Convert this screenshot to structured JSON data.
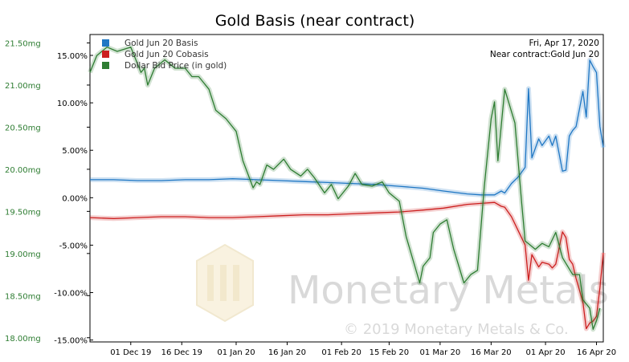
{
  "chart_data": {
    "type": "line",
    "title": "Gold Basis (near contract)",
    "legend": {
      "placement": "top-left",
      "entries": [
        {
          "name": "Gold Jun 20 Basis",
          "color": "#1f77c4"
        },
        {
          "name": "Gold Jun 20 Cobasis",
          "color": "#cc1f1f"
        },
        {
          "name": "Dollar Bid Price (in gold)",
          "color": "#2e7d32"
        }
      ]
    },
    "info": {
      "date": "Fri, Apr 17, 2020",
      "contract": "Near contract:Gold Jun 20"
    },
    "watermark": {
      "brand": "Monetary Metals",
      "copyright": "© 2019 Monetary Metals & Co."
    },
    "x_axis": {
      "start": "2019-11-19",
      "end": "2020-04-18",
      "ticks": [
        {
          "date": "2019-12-01",
          "label": "01 Dec 19"
        },
        {
          "date": "2019-12-16",
          "label": "16 Dec 19"
        },
        {
          "date": "2020-01-01",
          "label": "01 Jan 20"
        },
        {
          "date": "2020-01-16",
          "label": "16 Jan 20"
        },
        {
          "date": "2020-02-01",
          "label": "01 Feb 20"
        },
        {
          "date": "2020-02-15",
          "label": "15 Feb 20"
        },
        {
          "date": "2020-03-01",
          "label": "01 Mar 20"
        },
        {
          "date": "2020-03-16",
          "label": "16 Mar 20"
        },
        {
          "date": "2020-04-01",
          "label": "01 Apr 20"
        },
        {
          "date": "2020-04-16",
          "label": "16 Apr 20"
        }
      ]
    },
    "y_left": {
      "unit": "mg",
      "range": [
        17.95,
        21.6
      ],
      "ticks": [
        {
          "value": 18.0,
          "label": "18.00mg"
        },
        {
          "value": 18.5,
          "label": "18.50mg"
        },
        {
          "value": 19.0,
          "label": "19.00mg"
        },
        {
          "value": 19.5,
          "label": "19.50mg"
        },
        {
          "value": 20.0,
          "label": "20.00mg"
        },
        {
          "value": 20.5,
          "label": "20.50mg"
        },
        {
          "value": 21.0,
          "label": "21.00mg"
        },
        {
          "value": 21.5,
          "label": "21.50mg"
        }
      ]
    },
    "y_right": {
      "unit": "%",
      "range": [
        -15.2,
        17.2
      ],
      "ticks": [
        {
          "value": 15,
          "label": "15.00%"
        },
        {
          "value": 10,
          "label": "10.00%"
        },
        {
          "value": 5,
          "label": "5.00%"
        },
        {
          "value": 0,
          "label": "0.00%"
        },
        {
          "value": -5,
          "label": "-5.00%"
        },
        {
          "value": -10,
          "label": "-10.00%"
        },
        {
          "value": -15,
          "label": "-15.00%"
        }
      ]
    },
    "grid": false,
    "series": [
      {
        "name": "Gold Jun 20 Basis",
        "axis": "right",
        "color": "#1f77c4",
        "points": [
          [
            "2019-11-19",
            1.9
          ],
          [
            "2019-11-26",
            1.9
          ],
          [
            "2019-12-03",
            1.8
          ],
          [
            "2019-12-10",
            1.8
          ],
          [
            "2019-12-17",
            1.9
          ],
          [
            "2019-12-24",
            1.9
          ],
          [
            "2019-12-31",
            2.0
          ],
          [
            "2020-01-07",
            1.9
          ],
          [
            "2020-01-14",
            1.8
          ],
          [
            "2020-01-21",
            1.7
          ],
          [
            "2020-01-28",
            1.6
          ],
          [
            "2020-02-04",
            1.5
          ],
          [
            "2020-02-11",
            1.4
          ],
          [
            "2020-02-18",
            1.2
          ],
          [
            "2020-02-25",
            1.0
          ],
          [
            "2020-03-02",
            0.7
          ],
          [
            "2020-03-09",
            0.4
          ],
          [
            "2020-03-13",
            0.3
          ],
          [
            "2020-03-17",
            0.3
          ],
          [
            "2020-03-19",
            0.7
          ],
          [
            "2020-03-20",
            0.5
          ],
          [
            "2020-03-22",
            1.5
          ],
          [
            "2020-03-24",
            2.2
          ],
          [
            "2020-03-26",
            3.2
          ],
          [
            "2020-03-27",
            11.5
          ],
          [
            "2020-03-28",
            4.2
          ],
          [
            "2020-03-30",
            6.2
          ],
          [
            "2020-03-31",
            5.5
          ],
          [
            "2020-04-02",
            6.5
          ],
          [
            "2020-04-03",
            5.5
          ],
          [
            "2020-04-04",
            6.5
          ],
          [
            "2020-04-06",
            2.8
          ],
          [
            "2020-04-07",
            2.9
          ],
          [
            "2020-04-08",
            6.5
          ],
          [
            "2020-04-09",
            7.1
          ],
          [
            "2020-04-10",
            7.5
          ],
          [
            "2020-04-12",
            11.2
          ],
          [
            "2020-04-13",
            8.5
          ],
          [
            "2020-04-14",
            14.5
          ],
          [
            "2020-04-15",
            13.8
          ],
          [
            "2020-04-16",
            13.2
          ],
          [
            "2020-04-17",
            7.5
          ],
          [
            "2020-04-18",
            5.3
          ]
        ]
      },
      {
        "name": "Gold Jun 20 Cobasis",
        "axis": "right",
        "color": "#cc1f1f",
        "points": [
          [
            "2019-11-19",
            -2.1
          ],
          [
            "2019-11-26",
            -2.2
          ],
          [
            "2019-12-03",
            -2.1
          ],
          [
            "2019-12-10",
            -2.0
          ],
          [
            "2019-12-17",
            -2.0
          ],
          [
            "2019-12-24",
            -2.1
          ],
          [
            "2019-12-31",
            -2.1
          ],
          [
            "2020-01-07",
            -2.0
          ],
          [
            "2020-01-14",
            -1.9
          ],
          [
            "2020-01-21",
            -1.8
          ],
          [
            "2020-01-28",
            -1.8
          ],
          [
            "2020-02-04",
            -1.7
          ],
          [
            "2020-02-11",
            -1.6
          ],
          [
            "2020-02-18",
            -1.5
          ],
          [
            "2020-02-25",
            -1.3
          ],
          [
            "2020-03-02",
            -1.1
          ],
          [
            "2020-03-09",
            -0.7
          ],
          [
            "2020-03-13",
            -0.6
          ],
          [
            "2020-03-17",
            -0.5
          ],
          [
            "2020-03-19",
            -0.9
          ],
          [
            "2020-03-20",
            -1.0
          ],
          [
            "2020-03-22",
            -2.0
          ],
          [
            "2020-03-24",
            -3.5
          ],
          [
            "2020-03-26",
            -5.0
          ],
          [
            "2020-03-27",
            -8.7
          ],
          [
            "2020-03-28",
            -6.0
          ],
          [
            "2020-03-30",
            -7.3
          ],
          [
            "2020-03-31",
            -6.8
          ],
          [
            "2020-04-02",
            -7.0
          ],
          [
            "2020-04-03",
            -7.4
          ],
          [
            "2020-04-04",
            -7.0
          ],
          [
            "2020-04-06",
            -3.6
          ],
          [
            "2020-04-07",
            -4.2
          ],
          [
            "2020-04-08",
            -6.5
          ],
          [
            "2020-04-09",
            -7.0
          ],
          [
            "2020-04-10",
            -8.5
          ],
          [
            "2020-04-12",
            -11.0
          ],
          [
            "2020-04-13",
            -13.8
          ],
          [
            "2020-04-14",
            -13.2
          ],
          [
            "2020-04-15",
            -13.0
          ],
          [
            "2020-04-16",
            -12.5
          ],
          [
            "2020-04-17",
            -9.5
          ],
          [
            "2020-04-18",
            -5.8
          ]
        ]
      },
      {
        "name": "Dollar Bid Price (in gold)",
        "axis": "left",
        "color": "#2e7d32",
        "points": [
          [
            "2019-11-19",
            21.15
          ],
          [
            "2019-11-21",
            21.35
          ],
          [
            "2019-11-24",
            21.45
          ],
          [
            "2019-11-27",
            21.4
          ],
          [
            "2019-12-01",
            21.45
          ],
          [
            "2019-12-04",
            21.15
          ],
          [
            "2019-12-05",
            21.2
          ],
          [
            "2019-12-06",
            21.0
          ],
          [
            "2019-12-08",
            21.2
          ],
          [
            "2019-12-11",
            21.3
          ],
          [
            "2019-12-14",
            21.2
          ],
          [
            "2019-12-17",
            21.2
          ],
          [
            "2019-12-19",
            21.1
          ],
          [
            "2019-12-21",
            21.1
          ],
          [
            "2019-12-24",
            20.95
          ],
          [
            "2019-12-26",
            20.7
          ],
          [
            "2019-12-29",
            20.6
          ],
          [
            "2020-01-01",
            20.45
          ],
          [
            "2020-01-03",
            20.1
          ],
          [
            "2020-01-06",
            19.78
          ],
          [
            "2020-01-07",
            19.85
          ],
          [
            "2020-01-08",
            19.82
          ],
          [
            "2020-01-10",
            20.05
          ],
          [
            "2020-01-12",
            20.0
          ],
          [
            "2020-01-15",
            20.12
          ],
          [
            "2020-01-17",
            20.0
          ],
          [
            "2020-01-20",
            19.92
          ],
          [
            "2020-01-22",
            20.0
          ],
          [
            "2020-01-24",
            19.9
          ],
          [
            "2020-01-27",
            19.72
          ],
          [
            "2020-01-29",
            19.82
          ],
          [
            "2020-01-31",
            19.65
          ],
          [
            "2020-02-03",
            19.8
          ],
          [
            "2020-02-05",
            19.95
          ],
          [
            "2020-02-07",
            19.82
          ],
          [
            "2020-02-10",
            19.8
          ],
          [
            "2020-02-13",
            19.85
          ],
          [
            "2020-02-15",
            19.72
          ],
          [
            "2020-02-18",
            19.62
          ],
          [
            "2020-02-20",
            19.2
          ],
          [
            "2020-02-24",
            18.65
          ],
          [
            "2020-02-25",
            18.85
          ],
          [
            "2020-02-27",
            18.95
          ],
          [
            "2020-02-28",
            19.25
          ],
          [
            "2020-03-01",
            19.35
          ],
          [
            "2020-03-03",
            19.4
          ],
          [
            "2020-03-05",
            19.05
          ],
          [
            "2020-03-08",
            18.65
          ],
          [
            "2020-03-10",
            18.75
          ],
          [
            "2020-03-12",
            18.8
          ],
          [
            "2020-03-14",
            19.8
          ],
          [
            "2020-03-16",
            20.6
          ],
          [
            "2020-03-17",
            20.8
          ],
          [
            "2020-03-18",
            20.1
          ],
          [
            "2020-03-20",
            20.95
          ],
          [
            "2020-03-23",
            20.55
          ],
          [
            "2020-03-25",
            19.6
          ],
          [
            "2020-03-26",
            19.15
          ],
          [
            "2020-03-29",
            19.05
          ],
          [
            "2020-03-31",
            19.12
          ],
          [
            "2020-04-02",
            19.08
          ],
          [
            "2020-04-04",
            19.25
          ],
          [
            "2020-04-06",
            18.95
          ],
          [
            "2020-04-09",
            18.75
          ],
          [
            "2020-04-11",
            18.75
          ],
          [
            "2020-04-12",
            18.45
          ],
          [
            "2020-04-14",
            18.35
          ],
          [
            "2020-04-15",
            18.1
          ],
          [
            "2020-04-16",
            18.2
          ],
          [
            "2020-04-17",
            18.35
          ]
        ]
      }
    ]
  }
}
